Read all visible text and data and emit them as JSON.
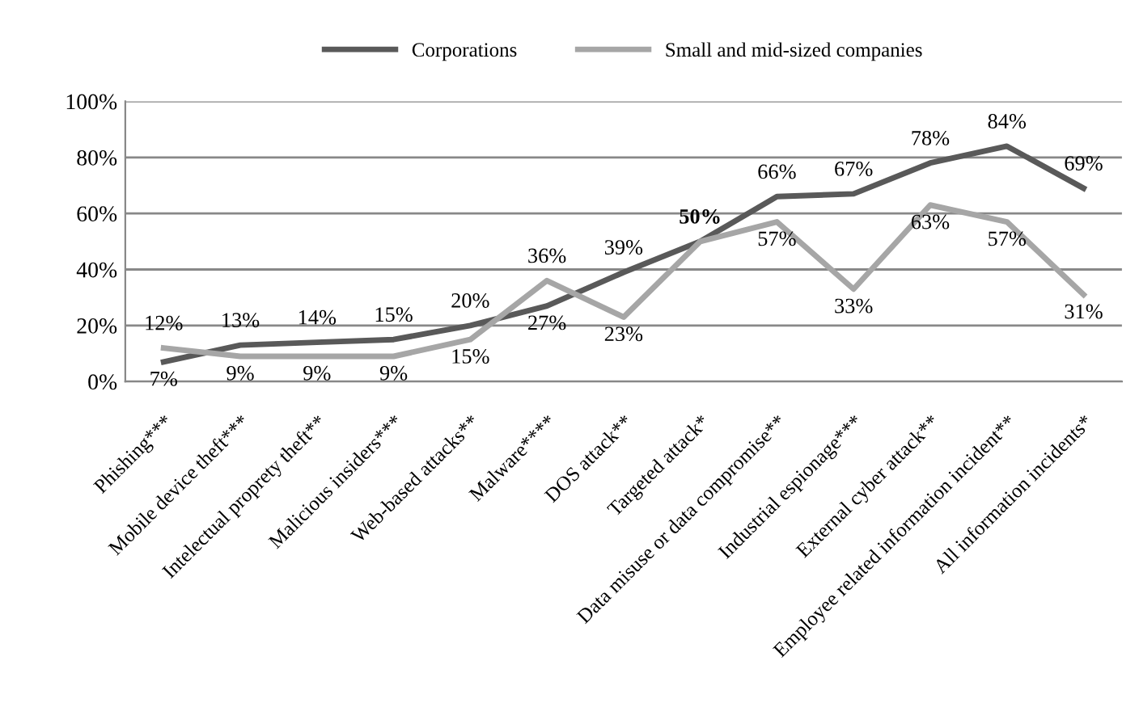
{
  "chart_data": {
    "type": "line",
    "categories": [
      "Phishing***",
      "Mobile device theft***",
      "Intelectual proprety theft**",
      "Malicious insiders***",
      "Web-based attacks**",
      "Malware****",
      "DOS attack**",
      "Targeted attack*",
      "Data misuse or data compromise**",
      "Industrial espionage***",
      "External cyber attack**",
      "Employee related information incident**",
      "All information incidents*"
    ],
    "series": [
      {
        "name": "Corporations",
        "color": "#595959",
        "values": [
          7,
          13,
          14,
          15,
          20,
          27,
          39,
          50,
          66,
          67,
          78,
          84,
          69
        ],
        "value_labels": [
          "7%",
          "13%",
          "14%",
          "15%",
          "20%",
          "27%",
          "39%",
          "50%",
          "66%",
          "67%",
          "78%",
          "84%",
          "69%"
        ]
      },
      {
        "name": "Small and mid-sized companies",
        "color": "#a6a6a6",
        "values": [
          12,
          9,
          9,
          9,
          15,
          36,
          23,
          50,
          57,
          33,
          63,
          57,
          31
        ],
        "value_labels": [
          "12%",
          "9%",
          "9%",
          "9%",
          "15%",
          "36%",
          "23%",
          null,
          "57%",
          "33%",
          "63%",
          "57%",
          "31%"
        ]
      }
    ],
    "ylim": [
      0,
      100
    ],
    "yticks": [
      {
        "value": 0,
        "label": "0%"
      },
      {
        "value": 20,
        "label": "20%"
      },
      {
        "value": 40,
        "label": "40%"
      },
      {
        "value": 60,
        "label": "60%"
      },
      {
        "value": 80,
        "label": "80%"
      },
      {
        "value": 100,
        "label": "100%"
      }
    ],
    "grid": "y",
    "legend": "top",
    "marker": "none",
    "line_style": "solid"
  }
}
